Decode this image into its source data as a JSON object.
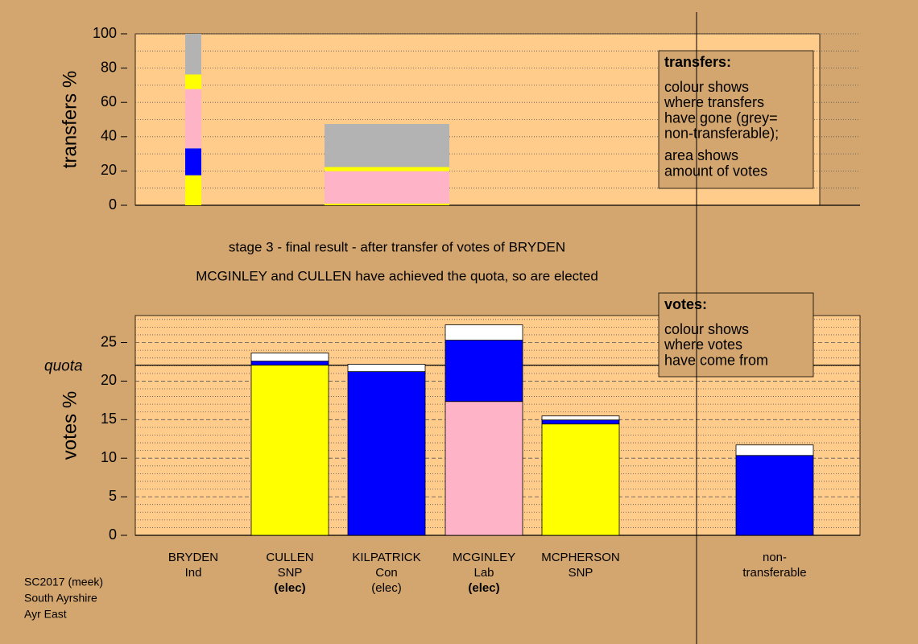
{
  "subtitle_lines": [
    "stage 3 - final result - after transfer of votes of BRYDEN",
    "MCGINLEY and CULLEN have achieved the quota, so are elected"
  ],
  "footer": [
    "SC2017 (meek)",
    "South Ayrshire",
    "Ayr East"
  ],
  "chart_data": [
    {
      "type": "bar",
      "ylabel": "transfers %",
      "ylim": [
        0,
        100
      ],
      "yticks": [
        0,
        20,
        40,
        60,
        80,
        100
      ],
      "minor_yticks": [
        10,
        30,
        50,
        70,
        90
      ],
      "stacks": [
        {
          "colors": [
            "#ffff00",
            "#0000ff",
            "#ffb3c6",
            "#ffff00",
            "#b3b3b3"
          ],
          "values": [
            17.5,
            15.7,
            34.6,
            8.5,
            23.7
          ]
        },
        {
          "colors": [
            "#ffff00",
            "#ffb3c6",
            "#ffff00",
            "#b3b3b3"
          ],
          "values": [
            1,
            18.9,
            2.4,
            25.1
          ]
        }
      ],
      "legend": {
        "title": "transfers:",
        "lines": [
          "colour shows",
          "where transfers",
          "have gone (grey=",
          "non-transferable);",
          "area shows",
          "amount of votes"
        ]
      }
    },
    {
      "type": "bar",
      "ylabel": "votes %",
      "ylim": [
        0,
        28.5
      ],
      "yticks": [
        0,
        5,
        10,
        15,
        20,
        25
      ],
      "minor_yticks": [
        1,
        2,
        3,
        4,
        6,
        7,
        8,
        9,
        11,
        12,
        13,
        14,
        16,
        17,
        18,
        19,
        21,
        22,
        23,
        24,
        26,
        27,
        28
      ],
      "quota": {
        "label": "quota",
        "value": 22.07
      },
      "categories": [
        [
          "BRYDEN",
          "Ind"
        ],
        [
          "CULLEN",
          "SNP",
          "(elec)"
        ],
        [
          "KILPATRICK",
          "Con",
          "(elec)"
        ],
        [
          "MCGINLEY",
          "Lab",
          "(elec)"
        ],
        [
          "MCPHERSON",
          "SNP"
        ],
        [
          "non-",
          "transferable"
        ]
      ],
      "highlight": [
        false,
        true,
        false,
        true,
        false,
        false
      ],
      "stacks": [
        {
          "colors": [
            "#ffff00"
          ],
          "values": [
            0
          ]
        },
        {
          "colors": [
            "#ffff00",
            "#0000ff",
            "#ffffff"
          ],
          "values": [
            22.07,
            0.52,
            1.05
          ]
        },
        {
          "colors": [
            "#0000ff",
            "#ffffff"
          ],
          "values": [
            21.23,
            0.95
          ]
        },
        {
          "colors": [
            "#ffb3c6",
            "#0000ff",
            "#ffffff"
          ],
          "values": [
            17.36,
            7.95,
            1.99
          ]
        },
        {
          "colors": [
            "#ffff00",
            "#0000ff",
            "#ffffff"
          ],
          "values": [
            14.44,
            0.52,
            0.52
          ]
        },
        {
          "colors": [
            "#0000ff",
            "#ffffff"
          ],
          "values": [
            10.36,
            1.36
          ]
        }
      ],
      "legend": {
        "title": "votes:",
        "lines": [
          "colour shows",
          "where votes",
          "have come from"
        ]
      }
    }
  ]
}
